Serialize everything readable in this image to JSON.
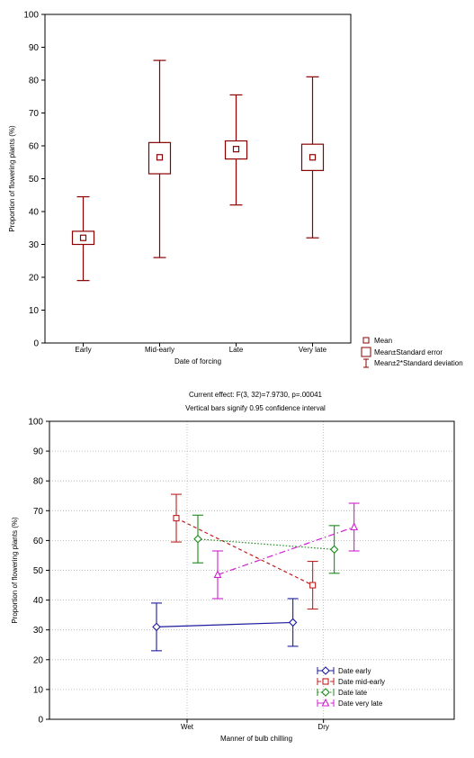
{
  "colors": {
    "box_plot": "#8B0000",
    "grid": "#b0b0b0",
    "axis": "#000000"
  },
  "chart_data": [
    {
      "type": "box",
      "ylabel": "Proportion of flowering plants (%)",
      "xlabel": "Date of forcing",
      "ylim": [
        0,
        100
      ],
      "yticks": [
        0,
        10,
        20,
        30,
        40,
        50,
        60,
        70,
        80,
        90,
        100
      ],
      "categories": [
        "Early",
        "Mid-early",
        "Late",
        "Very late"
      ],
      "mean": [
        32,
        56.5,
        59,
        56.5
      ],
      "se_low": [
        30,
        51.5,
        56,
        52.5
      ],
      "se_high": [
        34,
        61,
        61.5,
        60.5
      ],
      "sd_low": [
        19,
        26,
        42,
        32
      ],
      "sd_high": [
        44.5,
        86,
        75.5,
        81
      ],
      "grid": false,
      "legend": {
        "position": "right",
        "items": [
          "Mean",
          "Mean±Standard error",
          "Mean±2*Standard deviation"
        ]
      }
    },
    {
      "type": "line",
      "title": "Current effect: F(3, 32)=7.9730, p=.00041",
      "subtitle": "Vertical bars signify 0.95 confidence interval",
      "ylabel": "Proportion of flowering plants (%)",
      "xlabel": "Manner of bulb chilling",
      "ylim": [
        0,
        100
      ],
      "yticks": [
        0,
        10,
        20,
        30,
        40,
        50,
        60,
        70,
        80,
        90,
        100
      ],
      "categories": [
        "Wet",
        "Dry"
      ],
      "grid": true,
      "legend": {
        "position": "bottom-right"
      },
      "series": [
        {
          "name": "Date   early",
          "color": "#1c1c9e",
          "marker": "diamond",
          "dash": "solid",
          "means": [
            31,
            32.5
          ],
          "ci_low": [
            23,
            24.5
          ],
          "ci_high": [
            39,
            40.5
          ]
        },
        {
          "name": "Date   mid-early",
          "color": "#c02020",
          "marker": "square",
          "dash": "dashed",
          "means": [
            67.5,
            45
          ],
          "ci_low": [
            59.5,
            37
          ],
          "ci_high": [
            75.5,
            53
          ]
        },
        {
          "name": "Date   late",
          "color": "#1a8a1a",
          "marker": "diamond",
          "dash": "dotted",
          "means": [
            60.5,
            57
          ],
          "ci_low": [
            52.5,
            49
          ],
          "ci_high": [
            68.5,
            65
          ]
        },
        {
          "name": "Date   very late",
          "color": "#d020d0",
          "marker": "triangle",
          "dash": "dashdot",
          "means": [
            48.5,
            64.5
          ],
          "ci_low": [
            40.5,
            56.5
          ],
          "ci_high": [
            56.5,
            72.5
          ]
        }
      ]
    }
  ]
}
